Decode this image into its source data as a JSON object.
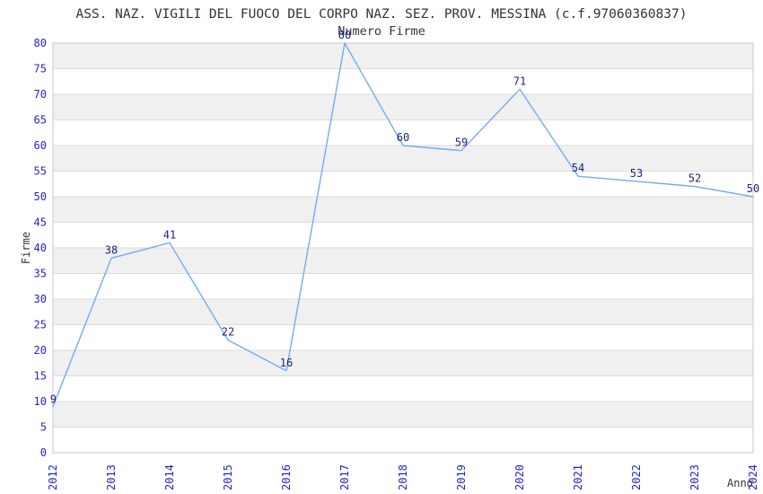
{
  "chart_data": {
    "type": "line",
    "title": "ASS. NAZ. VIGILI DEL FUOCO DEL CORPO NAZ. SEZ. PROV. MESSINA (c.f.97060360837)",
    "subtitle": "Numero Firme",
    "xlabel": "Anno",
    "ylabel": "Firme",
    "categories": [
      "2012",
      "2013",
      "2014",
      "2015",
      "2016",
      "2017",
      "2018",
      "2019",
      "2020",
      "2021",
      "2022",
      "2023",
      "2024"
    ],
    "values": [
      9,
      38,
      41,
      22,
      16,
      80,
      60,
      59,
      71,
      54,
      53,
      52,
      50
    ],
    "ylim": [
      0,
      80
    ],
    "ytick_step": 5,
    "grid": true,
    "legend_position": "none",
    "x_tick_rotation_deg": 90,
    "data_labels_shown": true,
    "colors": {
      "line": "#73acf1",
      "tick_label": "#2323d0",
      "data_label": "#22227a",
      "band": "#f0f0f0",
      "gridline": "#dcdcdc",
      "plot_border": "#c8c8c8",
      "text": "#333333",
      "background": "#ffffff"
    }
  }
}
